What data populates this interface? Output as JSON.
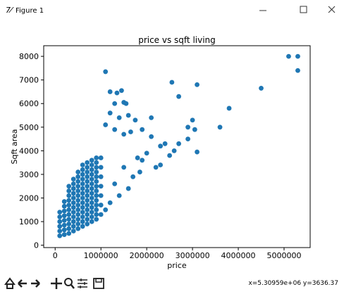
{
  "window": {
    "title": "Figure 1"
  },
  "status": "x=5.30959e+06 y=3636.37",
  "chart_data": {
    "type": "scatter",
    "title": "price vs sqft living",
    "x_label": "price",
    "y_label": "Sqft area",
    "color": "#1f77b4",
    "xlim": [
      -250000,
      5570000
    ],
    "xticks": [
      0,
      1000000,
      2000000,
      3000000,
      4000000,
      5000000
    ],
    "ylim": [
      -100,
      8450
    ],
    "yticks": [
      0,
      1000,
      2000,
      3000,
      4000,
      5000,
      6000,
      7000,
      8000
    ],
    "x": [
      100000,
      100000,
      100000,
      100000,
      100000,
      100000,
      200000,
      200000,
      200000,
      200000,
      200000,
      200000,
      200000,
      200000,
      300000,
      300000,
      300000,
      300000,
      300000,
      300000,
      300000,
      300000,
      300000,
      300000,
      300000,
      400000,
      400000,
      400000,
      400000,
      400000,
      400000,
      400000,
      400000,
      400000,
      400000,
      400000,
      400000,
      500000,
      500000,
      500000,
      500000,
      500000,
      500000,
      500000,
      500000,
      500000,
      500000,
      500000,
      500000,
      500000,
      600000,
      600000,
      600000,
      600000,
      600000,
      600000,
      600000,
      600000,
      600000,
      600000,
      600000,
      600000,
      600000,
      600000,
      700000,
      700000,
      700000,
      700000,
      700000,
      700000,
      700000,
      700000,
      700000,
      700000,
      700000,
      700000,
      700000,
      700000,
      800000,
      800000,
      800000,
      800000,
      800000,
      800000,
      800000,
      800000,
      800000,
      800000,
      800000,
      800000,
      800000,
      800000,
      900000,
      900000,
      900000,
      900000,
      900000,
      900000,
      900000,
      900000,
      900000,
      900000,
      900000,
      900000,
      900000,
      900000,
      1000000,
      1000000,
      1000000,
      1000000,
      1000000,
      1000000,
      1000000,
      1100000,
      1200000,
      1350000,
      1450000,
      1300000,
      1500000,
      1550000,
      1200000,
      1400000,
      1600000,
      1750000,
      1100000,
      1300000,
      1500000,
      1650000,
      1900000,
      2100000,
      2300000,
      2400000,
      2550000,
      2700000,
      3100000,
      2900000,
      3000000,
      3050000,
      3100000,
      2900000,
      2600000,
      2500000,
      2200000,
      2000000,
      1800000,
      1700000,
      1600000,
      1400000,
      1300000,
      1200000,
      1100000,
      1500000,
      1900000,
      2100000,
      3600000,
      3800000,
      4500000,
      5100000,
      5300000,
      5300000,
      2700000,
      2300000,
      1850000
    ],
    "values": [
      400,
      600,
      800,
      1000,
      1200,
      1400,
      450,
      650,
      850,
      1050,
      1250,
      1450,
      1650,
      1850,
      500,
      700,
      900,
      1100,
      1300,
      1500,
      1700,
      1900,
      2100,
      2300,
      2500,
      600,
      800,
      1000,
      1200,
      1400,
      1600,
      1800,
      2000,
      2200,
      2400,
      2600,
      2800,
      700,
      900,
      1100,
      1300,
      1500,
      1700,
      1900,
      2100,
      2300,
      2500,
      2700,
      2900,
      3100,
      800,
      1000,
      1200,
      1400,
      1600,
      1800,
      2000,
      2200,
      2400,
      2600,
      2800,
      3000,
      3200,
      3400,
      900,
      1100,
      1300,
      1500,
      1700,
      1900,
      2100,
      2300,
      2500,
      2700,
      2900,
      3100,
      3300,
      3500,
      1000,
      1200,
      1400,
      1600,
      1800,
      2000,
      2200,
      2400,
      2600,
      2800,
      3000,
      3200,
      3400,
      3600,
      1100,
      1300,
      1500,
      1700,
      1900,
      2100,
      2300,
      2500,
      2700,
      2900,
      3100,
      3300,
      3500,
      3700,
      1300,
      1700,
      2100,
      2500,
      2900,
      3300,
      3700,
      7350,
      6500,
      6450,
      6550,
      6000,
      6050,
      6000,
      5600,
      5400,
      5500,
      5300,
      5100,
      4900,
      4700,
      4800,
      4900,
      5400,
      4200,
      4300,
      6900,
      6300,
      6800,
      5000,
      5300,
      4900,
      3950,
      4500,
      4000,
      3800,
      3300,
      3900,
      3700,
      2900,
      2400,
      2100,
      2600,
      1800,
      1500,
      3300,
      3600,
      4600,
      5000,
      5800,
      6650,
      8000,
      8000,
      7400,
      4300,
      3400,
      3100
    ]
  }
}
